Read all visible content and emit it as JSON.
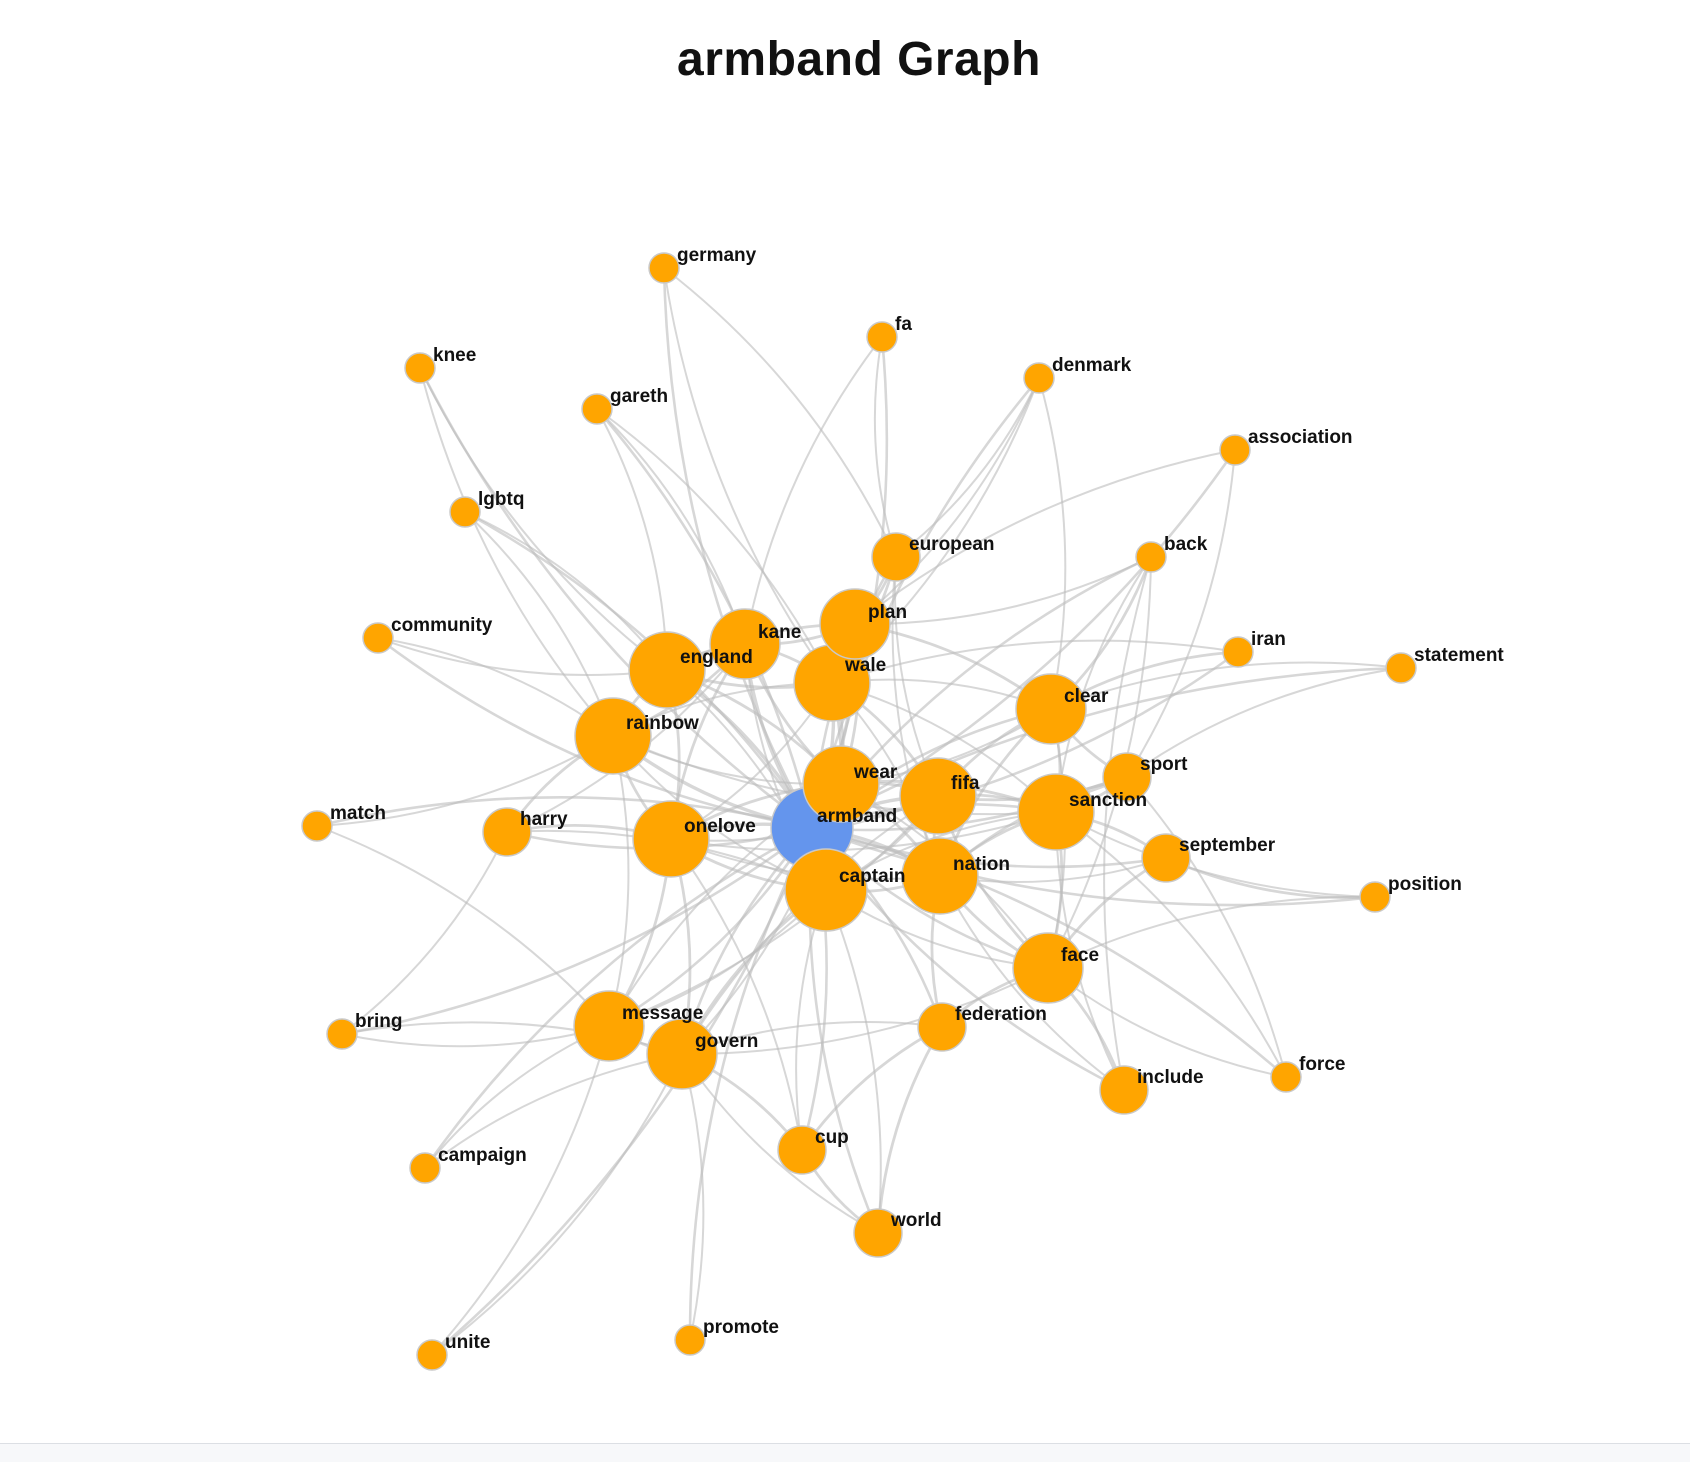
{
  "title": "armband Graph",
  "colors": {
    "center_node": "#6495ED",
    "node": "#FFA500",
    "edge": "#bdbdbd",
    "label": "#111111"
  },
  "center_node": "armband",
  "nodes": [
    {
      "id": "armband",
      "size": "xl",
      "color": "#6495ED"
    },
    {
      "id": "wear",
      "size": "lg"
    },
    {
      "id": "fifa",
      "size": "lg"
    },
    {
      "id": "captain",
      "size": "xl"
    },
    {
      "id": "nation",
      "size": "lg"
    },
    {
      "id": "onelove",
      "size": "lg"
    },
    {
      "id": "sanction",
      "size": "lg"
    },
    {
      "id": "wale",
      "size": "lg"
    },
    {
      "id": "kane",
      "size": "md"
    },
    {
      "id": "england",
      "size": "lg"
    },
    {
      "id": "rainbow",
      "size": "lg"
    },
    {
      "id": "plan",
      "size": "md"
    },
    {
      "id": "clear",
      "size": "md"
    },
    {
      "id": "face",
      "size": "md"
    },
    {
      "id": "message",
      "size": "md"
    },
    {
      "id": "govern",
      "size": "md"
    },
    {
      "id": "european",
      "size": "sm"
    },
    {
      "id": "sport",
      "size": "sm"
    },
    {
      "id": "harry",
      "size": "sm"
    },
    {
      "id": "september",
      "size": "sm"
    },
    {
      "id": "federation",
      "size": "sm"
    },
    {
      "id": "include",
      "size": "sm"
    },
    {
      "id": "cup",
      "size": "sm"
    },
    {
      "id": "world",
      "size": "sm"
    },
    {
      "id": "force",
      "size": "xs"
    },
    {
      "id": "position",
      "size": "xs"
    },
    {
      "id": "back",
      "size": "xs"
    },
    {
      "id": "iran",
      "size": "xs"
    },
    {
      "id": "statement",
      "size": "xs"
    },
    {
      "id": "association",
      "size": "xs"
    },
    {
      "id": "denmark",
      "size": "xs"
    },
    {
      "id": "fa",
      "size": "xs"
    },
    {
      "id": "germany",
      "size": "xs"
    },
    {
      "id": "gareth",
      "size": "xs"
    },
    {
      "id": "knee",
      "size": "xs"
    },
    {
      "id": "lgbtq",
      "size": "xs"
    },
    {
      "id": "community",
      "size": "xs"
    },
    {
      "id": "match",
      "size": "xs"
    },
    {
      "id": "bring",
      "size": "xs"
    },
    {
      "id": "campaign",
      "size": "xs"
    },
    {
      "id": "unite",
      "size": "xs"
    },
    {
      "id": "promote",
      "size": "xs"
    }
  ],
  "edges": [
    [
      "armband",
      "wear"
    ],
    [
      "armband",
      "fifa"
    ],
    [
      "armband",
      "captain"
    ],
    [
      "armband",
      "nation"
    ],
    [
      "armband",
      "onelove"
    ],
    [
      "armband",
      "sanction"
    ],
    [
      "armband",
      "wale"
    ],
    [
      "armband",
      "kane"
    ],
    [
      "armband",
      "england"
    ],
    [
      "armband",
      "rainbow"
    ],
    [
      "armband",
      "plan"
    ],
    [
      "armband",
      "clear"
    ],
    [
      "armband",
      "face"
    ],
    [
      "armband",
      "message"
    ],
    [
      "armband",
      "govern"
    ],
    [
      "armband",
      "european"
    ],
    [
      "armband",
      "sport"
    ],
    [
      "armband",
      "harry"
    ],
    [
      "armband",
      "september"
    ],
    [
      "armband",
      "federation"
    ],
    [
      "armband",
      "include"
    ],
    [
      "armband",
      "cup"
    ],
    [
      "armband",
      "world"
    ],
    [
      "armband",
      "force"
    ],
    [
      "armband",
      "position"
    ],
    [
      "armband",
      "back"
    ],
    [
      "armband",
      "iran"
    ],
    [
      "armband",
      "statement"
    ],
    [
      "armband",
      "association"
    ],
    [
      "armband",
      "denmark"
    ],
    [
      "armband",
      "fa"
    ],
    [
      "armband",
      "germany"
    ],
    [
      "armband",
      "gareth"
    ],
    [
      "armband",
      "knee"
    ],
    [
      "armband",
      "lgbtq"
    ],
    [
      "armband",
      "community"
    ],
    [
      "armband",
      "match"
    ],
    [
      "armband",
      "bring"
    ],
    [
      "armband",
      "campaign"
    ],
    [
      "armband",
      "unite"
    ],
    [
      "armband",
      "promote"
    ],
    [
      "wear",
      "fifa"
    ],
    [
      "wear",
      "captain"
    ],
    [
      "wear",
      "nation"
    ],
    [
      "wear",
      "onelove"
    ],
    [
      "wear",
      "sanction"
    ],
    [
      "wear",
      "wale"
    ],
    [
      "wear",
      "kane"
    ],
    [
      "wear",
      "england"
    ],
    [
      "wear",
      "rainbow"
    ],
    [
      "wear",
      "clear"
    ],
    [
      "wear",
      "face"
    ],
    [
      "wear",
      "message"
    ],
    [
      "wear",
      "govern"
    ],
    [
      "wear",
      "plan"
    ],
    [
      "fifa",
      "captain"
    ],
    [
      "fifa",
      "nation"
    ],
    [
      "fifa",
      "sanction"
    ],
    [
      "fifa",
      "wale"
    ],
    [
      "fifa",
      "clear"
    ],
    [
      "fifa",
      "face"
    ],
    [
      "fifa",
      "message"
    ],
    [
      "fifa",
      "govern"
    ],
    [
      "fifa",
      "european"
    ],
    [
      "fifa",
      "sport"
    ],
    [
      "fifa",
      "onelove"
    ],
    [
      "captain",
      "nation"
    ],
    [
      "captain",
      "onelove"
    ],
    [
      "captain",
      "wale"
    ],
    [
      "captain",
      "kane"
    ],
    [
      "captain",
      "england"
    ],
    [
      "captain",
      "rainbow"
    ],
    [
      "captain",
      "face"
    ],
    [
      "captain",
      "message"
    ],
    [
      "captain",
      "govern"
    ],
    [
      "captain",
      "sanction"
    ],
    [
      "captain",
      "cup"
    ],
    [
      "captain",
      "world"
    ],
    [
      "captain",
      "harry"
    ],
    [
      "nation",
      "sanction"
    ],
    [
      "nation",
      "wale"
    ],
    [
      "nation",
      "clear"
    ],
    [
      "nation",
      "face"
    ],
    [
      "nation",
      "european"
    ],
    [
      "nation",
      "federation"
    ],
    [
      "nation",
      "sport"
    ],
    [
      "nation",
      "september"
    ],
    [
      "nation",
      "onelove"
    ],
    [
      "nation",
      "include"
    ],
    [
      "onelove",
      "rainbow"
    ],
    [
      "onelove",
      "england"
    ],
    [
      "onelove",
      "kane"
    ],
    [
      "onelove",
      "wale"
    ],
    [
      "onelove",
      "message"
    ],
    [
      "onelove",
      "harry"
    ],
    [
      "onelove",
      "govern"
    ],
    [
      "onelove",
      "sanction"
    ],
    [
      "onelove",
      "cup"
    ],
    [
      "sanction",
      "clear"
    ],
    [
      "sanction",
      "face"
    ],
    [
      "sanction",
      "sport"
    ],
    [
      "sanction",
      "september"
    ],
    [
      "sanction",
      "position"
    ],
    [
      "sanction",
      "force"
    ],
    [
      "sanction",
      "include"
    ],
    [
      "sanction",
      "back"
    ],
    [
      "sanction",
      "wale"
    ],
    [
      "sanction",
      "rainbow"
    ],
    [
      "wale",
      "kane"
    ],
    [
      "wale",
      "england"
    ],
    [
      "wale",
      "rainbow"
    ],
    [
      "wale",
      "plan"
    ],
    [
      "wale",
      "european"
    ],
    [
      "wale",
      "clear"
    ],
    [
      "wale",
      "denmark"
    ],
    [
      "wale",
      "iran"
    ],
    [
      "wale",
      "gareth"
    ],
    [
      "wale",
      "germany"
    ],
    [
      "kane",
      "england"
    ],
    [
      "kane",
      "rainbow"
    ],
    [
      "kane",
      "plan"
    ],
    [
      "kane",
      "harry"
    ],
    [
      "kane",
      "gareth"
    ],
    [
      "kane",
      "fa"
    ],
    [
      "england",
      "rainbow"
    ],
    [
      "england",
      "knee"
    ],
    [
      "england",
      "lgbtq"
    ],
    [
      "england",
      "community"
    ],
    [
      "england",
      "gareth"
    ],
    [
      "england",
      "plan"
    ],
    [
      "rainbow",
      "lgbtq"
    ],
    [
      "rainbow",
      "match"
    ],
    [
      "rainbow",
      "community"
    ],
    [
      "rainbow",
      "knee"
    ],
    [
      "rainbow",
      "harry"
    ],
    [
      "rainbow",
      "message"
    ],
    [
      "plan",
      "european"
    ],
    [
      "plan",
      "clear"
    ],
    [
      "plan",
      "denmark"
    ],
    [
      "plan",
      "association"
    ],
    [
      "plan",
      "back"
    ],
    [
      "clear",
      "face"
    ],
    [
      "clear",
      "sport"
    ],
    [
      "clear",
      "statement"
    ],
    [
      "clear",
      "back"
    ],
    [
      "clear",
      "iran"
    ],
    [
      "clear",
      "denmark"
    ],
    [
      "face",
      "include"
    ],
    [
      "face",
      "force"
    ],
    [
      "face",
      "position"
    ],
    [
      "face",
      "federation"
    ],
    [
      "face",
      "september"
    ],
    [
      "face",
      "back"
    ],
    [
      "face",
      "govern"
    ],
    [
      "message",
      "govern"
    ],
    [
      "message",
      "bring"
    ],
    [
      "message",
      "campaign"
    ],
    [
      "message",
      "unite"
    ],
    [
      "message",
      "match"
    ],
    [
      "govern",
      "cup"
    ],
    [
      "govern",
      "world"
    ],
    [
      "govern",
      "promote"
    ],
    [
      "govern",
      "campaign"
    ],
    [
      "govern",
      "unite"
    ],
    [
      "govern",
      "bring"
    ],
    [
      "govern",
      "federation"
    ],
    [
      "cup",
      "world"
    ],
    [
      "cup",
      "federation"
    ],
    [
      "federation",
      "world"
    ],
    [
      "sport",
      "statement"
    ],
    [
      "sport",
      "association"
    ],
    [
      "sport",
      "force"
    ],
    [
      "european",
      "denmark"
    ],
    [
      "european",
      "fa"
    ],
    [
      "european",
      "germany"
    ],
    [
      "harry",
      "bring"
    ],
    [
      "september",
      "position"
    ],
    [
      "include",
      "back"
    ]
  ]
}
